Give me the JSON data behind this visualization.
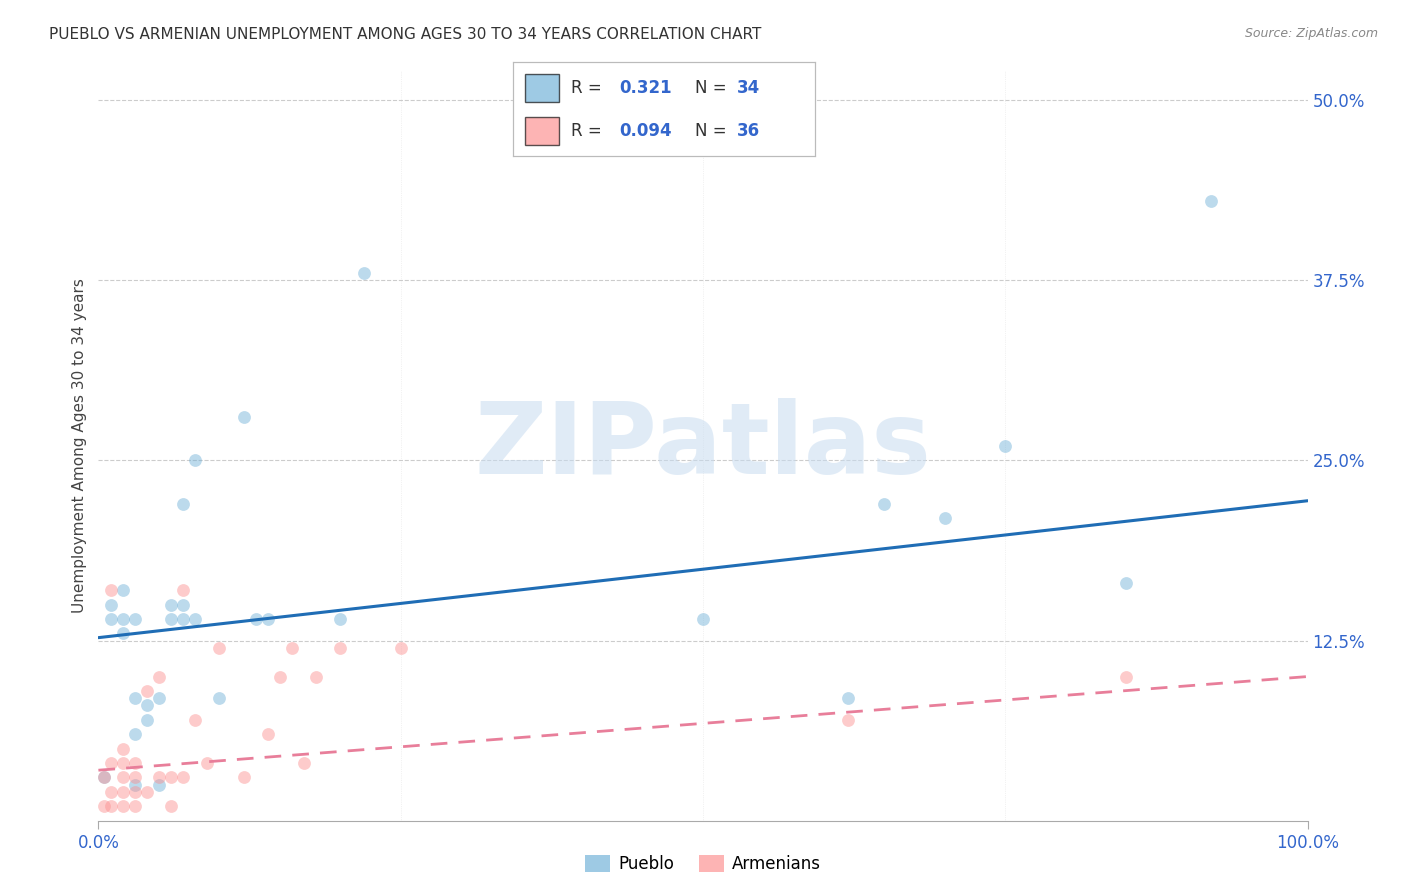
{
  "title": "PUEBLO VS ARMENIAN UNEMPLOYMENT AMONG AGES 30 TO 34 YEARS CORRELATION CHART",
  "source": "Source: ZipAtlas.com",
  "ylabel": "Unemployment Among Ages 30 to 34 years",
  "xlim": [
    0.0,
    1.0
  ],
  "ylim": [
    0.0,
    0.52
  ],
  "pueblo_color": "#6BAED6",
  "armenian_color": "#FC8D8D",
  "pueblo_line_color": "#1F6DB5",
  "armenian_line_color": "#E87E9A",
  "pueblo_x": [
    0.005,
    0.01,
    0.01,
    0.02,
    0.02,
    0.02,
    0.03,
    0.03,
    0.03,
    0.03,
    0.04,
    0.04,
    0.05,
    0.05,
    0.06,
    0.06,
    0.07,
    0.07,
    0.07,
    0.08,
    0.08,
    0.1,
    0.12,
    0.13,
    0.14,
    0.2,
    0.22,
    0.5,
    0.62,
    0.65,
    0.7,
    0.75,
    0.85,
    0.92
  ],
  "pueblo_y": [
    0.03,
    0.14,
    0.15,
    0.13,
    0.14,
    0.16,
    0.025,
    0.06,
    0.085,
    0.14,
    0.07,
    0.08,
    0.025,
    0.085,
    0.14,
    0.15,
    0.14,
    0.15,
    0.22,
    0.14,
    0.25,
    0.085,
    0.28,
    0.14,
    0.14,
    0.14,
    0.38,
    0.14,
    0.085,
    0.22,
    0.21,
    0.26,
    0.165,
    0.43
  ],
  "armenian_x": [
    0.005,
    0.005,
    0.01,
    0.01,
    0.01,
    0.01,
    0.02,
    0.02,
    0.02,
    0.02,
    0.02,
    0.03,
    0.03,
    0.03,
    0.03,
    0.04,
    0.04,
    0.05,
    0.05,
    0.06,
    0.06,
    0.07,
    0.07,
    0.08,
    0.09,
    0.1,
    0.12,
    0.14,
    0.15,
    0.16,
    0.17,
    0.18,
    0.2,
    0.25,
    0.62,
    0.85
  ],
  "armenian_y": [
    0.01,
    0.03,
    0.01,
    0.02,
    0.04,
    0.16,
    0.01,
    0.02,
    0.03,
    0.04,
    0.05,
    0.01,
    0.02,
    0.03,
    0.04,
    0.02,
    0.09,
    0.03,
    0.1,
    0.01,
    0.03,
    0.03,
    0.16,
    0.07,
    0.04,
    0.12,
    0.03,
    0.06,
    0.1,
    0.12,
    0.04,
    0.1,
    0.12,
    0.12,
    0.07,
    0.1
  ],
  "pueblo_line_x0": 0.0,
  "pueblo_line_y0": 0.127,
  "pueblo_line_x1": 1.0,
  "pueblo_line_y1": 0.222,
  "armenian_line_x0": 0.0,
  "armenian_line_y0": 0.035,
  "armenian_line_x1": 1.0,
  "armenian_line_y1": 0.1,
  "watermark_text": "ZIPatlas",
  "grid_color": "#CCCCCC",
  "marker_size": 85,
  "marker_alpha": 0.45
}
